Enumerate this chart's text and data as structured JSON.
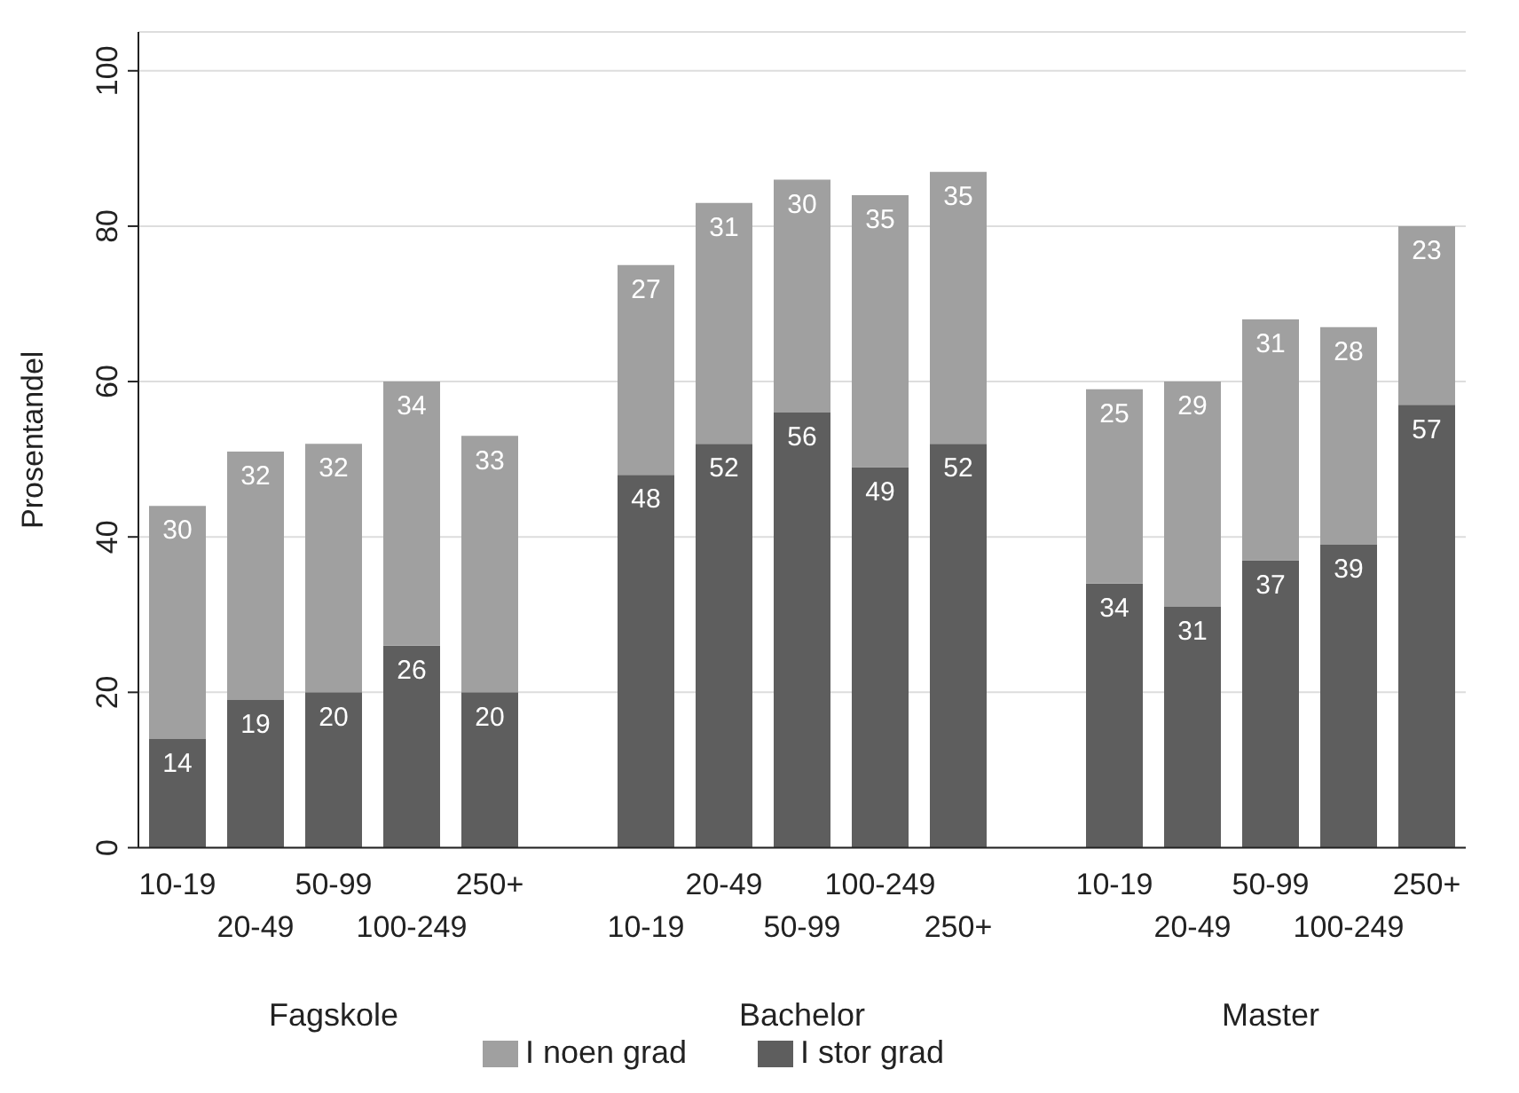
{
  "chart_data": {
    "type": "bar",
    "stacked": true,
    "ylabel": "Prosentandel",
    "categories": [
      "10-19",
      "20-49",
      "50-99",
      "100-249",
      "250+",
      null,
      "10-19",
      "20-49",
      "50-99",
      "100-249",
      "250+",
      null,
      "10-19",
      "20-49",
      "50-99",
      "100-249",
      "250+"
    ],
    "series": [
      {
        "name": "I stor grad",
        "color": "#5e5e5e",
        "values": [
          14,
          19,
          20,
          26,
          20,
          null,
          48,
          52,
          56,
          49,
          52,
          null,
          34,
          31,
          37,
          39,
          57
        ]
      },
      {
        "name": "I noen grad",
        "color": "#a0a0a0",
        "values": [
          30,
          32,
          32,
          34,
          33,
          null,
          27,
          31,
          30,
          35,
          35,
          null,
          25,
          29,
          31,
          28,
          23
        ]
      }
    ],
    "annotations": [
      "Fagskole",
      "Bachelor",
      "Master"
    ],
    "ylim": [
      0,
      105
    ],
    "yticks": [
      0,
      20,
      40,
      60,
      80,
      100
    ],
    "grid": "y",
    "legend": "bottom",
    "data_labels": true
  }
}
